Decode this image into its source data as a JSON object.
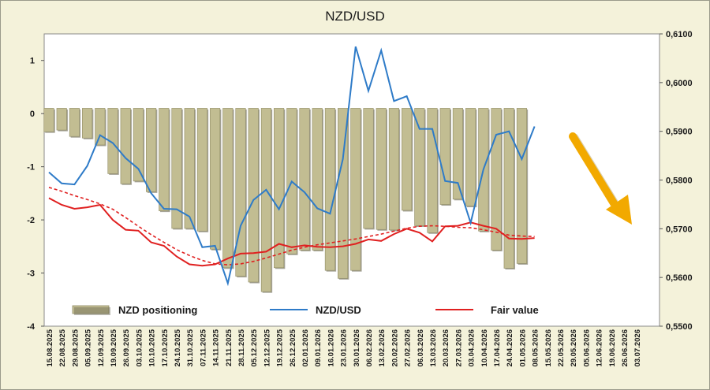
{
  "chart_data": {
    "type": "bar",
    "title": "NZD/USD",
    "x": [
      "15.08.2025",
      "22.08.2025",
      "29.08.2025",
      "05.09.2025",
      "12.09.2025",
      "19.09.2025",
      "26.09.2025",
      "03.10.2025",
      "10.10.2025",
      "17.10.2025",
      "24.10.2025",
      "31.10.2025",
      "07.11.2025",
      "14.11.2025",
      "21.11.2025",
      "28.11.2025",
      "05.12.2025",
      "12.12.2025",
      "19.12.2025",
      "26.12.2025",
      "02.01.2026",
      "09.01.2026",
      "16.01.2026",
      "23.01.2026",
      "30.01.2026",
      "06.02.2026",
      "13.02.2026",
      "20.02.2026",
      "27.02.2026",
      "06.03.2026",
      "13.03.2026",
      "20.03.2026",
      "27.03.2026",
      "03.04.2026",
      "10.04.2026",
      "17.04.2026",
      "24.04.2026",
      "01.05.2026",
      "08.05.2026",
      "15.05.2026",
      "22.05.2026",
      "29.05.2026",
      "05.06.2026",
      "12.06.2026",
      "19.06.2026",
      "26.06.2026",
      "03.07.2026"
    ],
    "y_left": {
      "ticks": [
        "1",
        "0",
        "-1",
        "-2",
        "-3",
        "-4"
      ],
      "ylim": [
        -4,
        1.5
      ]
    },
    "y_right": {
      "ticks": [
        "0,6100",
        "0,6000",
        "0,5900",
        "0,5800",
        "0,5700",
        "0,5600",
        "0,5500"
      ],
      "ylim": [
        0.55,
        0.61
      ]
    },
    "grid": false,
    "legend_position": "bottom",
    "series": [
      {
        "name": "NZD positioning",
        "kind": "bar",
        "axis": "left",
        "color": "#c2bd92",
        "values": [
          -0.34,
          -0.31,
          -0.43,
          -0.46,
          -0.59,
          -1.13,
          -1.32,
          -1.27,
          -1.47,
          -1.83,
          -2.16,
          -2.16,
          -2.21,
          -2.55,
          -2.9,
          -3.06,
          -3.17,
          -3.35,
          -2.9,
          -2.64,
          -2.57,
          -2.57,
          -2.95,
          -3.1,
          -2.95,
          -2.16,
          -2.18,
          -2.19,
          -1.82,
          -2.11,
          -2.24,
          -1.71,
          -1.61,
          -1.74,
          -2.21,
          -2.57,
          -2.91,
          -2.82,
          null,
          null,
          null,
          null,
          null,
          null,
          null,
          null,
          null
        ]
      },
      {
        "name": "NZD/USD",
        "kind": "line",
        "axis": "right",
        "color": "#2e7bc8",
        "values": [
          0.5816,
          0.5793,
          0.5791,
          0.5829,
          0.5892,
          0.5876,
          0.5845,
          0.5823,
          0.5773,
          0.5741,
          0.574,
          0.5725,
          0.5662,
          0.5665,
          0.5588,
          0.5706,
          0.5759,
          0.578,
          0.574,
          0.5797,
          0.5775,
          0.5742,
          0.5731,
          0.5843,
          0.6074,
          0.5983,
          0.6066,
          0.5962,
          0.5972,
          0.5905,
          0.5905,
          0.5798,
          0.5794,
          0.5712,
          0.5822,
          0.5893,
          0.59,
          0.5843,
          0.591,
          null,
          null,
          null,
          null,
          null,
          null,
          null,
          null
        ]
      },
      {
        "name": "Fair value",
        "kind": "line",
        "axis": "right",
        "color": "#e02020",
        "values": [
          0.5763,
          0.5749,
          0.5741,
          0.5744,
          0.5749,
          0.5718,
          0.5698,
          0.5696,
          0.5672,
          0.5665,
          0.5643,
          0.5627,
          0.5624,
          0.5627,
          0.5639,
          0.5649,
          0.565,
          0.5653,
          0.5669,
          0.5662,
          0.5666,
          0.5663,
          0.5662,
          0.5664,
          0.5669,
          0.5678,
          0.5675,
          0.5689,
          0.57,
          0.5692,
          0.5674,
          0.5705,
          0.5706,
          0.5713,
          0.5706,
          0.57,
          0.568,
          0.5679,
          0.5681,
          null,
          null,
          null,
          null,
          null,
          null,
          null,
          null
        ]
      },
      {
        "kind": "trend",
        "axis": "right",
        "color": "#e02020",
        "style": "dashed",
        "values": [
          0.5785,
          0.5777,
          0.5768,
          0.576,
          0.5751,
          0.574,
          0.5723,
          0.5705,
          0.5688,
          0.5672,
          0.5657,
          0.5645,
          0.5635,
          0.5628,
          0.5626,
          0.5628,
          0.5633,
          0.564,
          0.5648,
          0.5656,
          0.5662,
          0.5667,
          0.5671,
          0.5675,
          0.5679,
          0.5684,
          0.5689,
          0.5695,
          0.5701,
          0.5705,
          0.5706,
          0.5705,
          0.5703,
          0.5702,
          0.5698,
          0.5693,
          0.5687,
          0.5685,
          0.5684,
          null,
          null,
          null,
          null,
          null,
          null,
          null,
          null
        ]
      }
    ],
    "annotations": [
      {
        "type": "arrow",
        "direction": "down-right",
        "color": "#f2a900"
      }
    ]
  }
}
